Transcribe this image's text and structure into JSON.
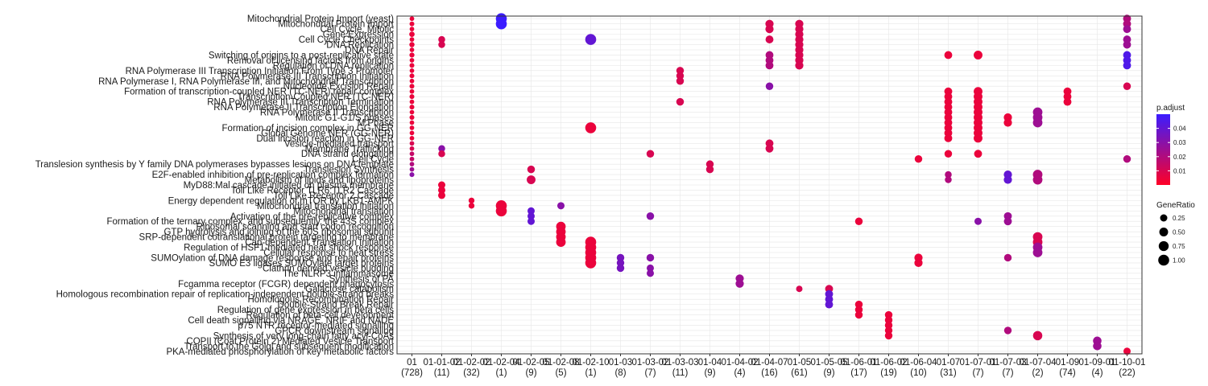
{
  "chart_data": {
    "type": "scatter",
    "title": "",
    "xlabel": "",
    "ylabel": "",
    "grid": true,
    "legend_placement": "right",
    "x_categories": [
      {
        "label": "01",
        "count": "(728)"
      },
      {
        "label": "01-01-02",
        "count": "(11)"
      },
      {
        "label": "01-02-02",
        "count": "(32)"
      },
      {
        "label": "01-02-04",
        "count": "(1)"
      },
      {
        "label": "01-02-05",
        "count": "(9)"
      },
      {
        "label": "01-02-08",
        "count": "(5)"
      },
      {
        "label": "01-02-10",
        "count": "(1)"
      },
      {
        "label": "01-03",
        "count": "(8)"
      },
      {
        "label": "01-03-02",
        "count": "(7)"
      },
      {
        "label": "01-03-03",
        "count": "(11)"
      },
      {
        "label": "01-04",
        "count": "(9)"
      },
      {
        "label": "01-04-02",
        "count": "(4)"
      },
      {
        "label": "01-04-07",
        "count": "(16)"
      },
      {
        "label": "01-05",
        "count": "(61)"
      },
      {
        "label": "01-05-05",
        "count": "(9)"
      },
      {
        "label": "01-06-01",
        "count": "(17)"
      },
      {
        "label": "01-06-02",
        "count": "(19)"
      },
      {
        "label": "01-06-04",
        "count": "(10)"
      },
      {
        "label": "01-07",
        "count": "(31)"
      },
      {
        "label": "01-07-01",
        "count": "(7)"
      },
      {
        "label": "01-07-03",
        "count": "(7)"
      },
      {
        "label": "01-07-04",
        "count": "(2)"
      },
      {
        "label": "01-09",
        "count": "(74)"
      },
      {
        "label": "01-09-01",
        "count": "(4)"
      },
      {
        "label": "01-10-01",
        "count": "(22)"
      }
    ],
    "y_categories": [
      "Mitochondrial Protein Import (yeast)",
      "Mitochondrial Protein Import",
      "Cell Cycle, Mitotic",
      "Gene Expression",
      "Cell Cycle Checkpoints",
      "DNA Replication",
      "DNA Repair",
      "Switching of origins to a post-replicative state",
      "Removal of licensing factors from origins",
      "Regulation of DNA replication",
      "RNA Polymerase III Transcription Initiation From Type 3 Promoter",
      "RNA Polymerase III Transcription Initiation",
      "RNA Polymerase I, RNA Polymerase III, and Mitochondrial Transcription",
      "Nucleotide Excision Repair",
      "Formation of transcription-coupled NER (TC-NER) repair complex",
      "Transcription-Coupled NER (TC-NER)",
      "RNA Polymerase III Transcription Termination",
      "RNA Polymerase II Transcription Elongation",
      "RNA Polymerase II Transcription",
      "Mitotic G1-G1/S phases",
      "M Phase",
      "Formation of incision complex in GG-NER",
      "Global Genome NER (GG-NER)",
      "Dual incision reaction in GG-NER",
      "Vesicle-mediated transport",
      "Membrane Trafficking",
      "DNA strand elongation",
      "Cell Cycle",
      "Translesion synthesis by Y family DNA polymerases bypasses lesions on DNA template",
      "Translesion Synthesis",
      "E2F-enabled inhibition of pre-replication complex formation",
      "Metabolism of lipids and lipoproteins",
      "MyD88:Mal cascade initiated on plasma membrane",
      "Toll Like Receptor TLR6:TLR2 Cascade",
      "Toll Like Receptor 2 Cascade",
      "Energy dependent regulation of mTOR by LKB1-AMPK",
      "Mitochondrial translation initiation",
      "Mitochondrial translation",
      "Activation of the pre-replicative complex",
      "Formation of the ternary complex, and subsequently, the 43S complex",
      "Ribosomal scanning and start codon recognition",
      "GTP hydrolysis and joining of the 60S ribosomal subunit",
      "SRP-dependent cotranslational protein targeting to membrane",
      "Cap-dependent Translation Initiation",
      "Regulation of HSF1-mediated heat shock response",
      "Cellular response to heat stress",
      "SUMOylation of DNA damage response and repair proteins",
      "SUMO E3 ligases SUMOylate target proteins",
      "Clathrin derived vesicle budding",
      "The NLRP3 inflammasome",
      "Synthesis of PA",
      "Fcgamma receptor (FCGR) dependent phagocytosis",
      "Galactose catabolism",
      "Homologous recombination repair of replication-independent double-strand breaks",
      "Homologous Recombination Repair",
      "Double-Strand Break Repair",
      "Regulation of gene expression in beta cells",
      "Regulation of beta-cell development",
      "Cell death signalling via NRAGE, NRIF and NADE",
      "p75 NTR receptor-mediated signalling",
      "GPCR downstream signaling",
      "Synthesis of very long-chain fatty acyl-CoAs",
      "COPII (Coat Protein 2) Mediated Vesicle Transport",
      "Transport to the Golgi and subsequent modification",
      "PKA-mediated phosphorylation of key metabolic factors"
    ],
    "legend": {
      "color": {
        "title": "p.adjust",
        "ticks": [
          0.01,
          0.02,
          0.03,
          0.04
        ],
        "min": 0.0,
        "max": 0.05,
        "low_color": "#ff0026",
        "high_color": "#3b1cff"
      },
      "size": {
        "title": "GeneRatio",
        "ticks": [
          0.25,
          0.5,
          0.75,
          1.0
        ],
        "tick_labels": [
          "0.25",
          "0.50",
          "0.75",
          "1.00"
        ]
      }
    },
    "points": [
      [
        0,
        0,
        0.02,
        0.005
      ],
      [
        0,
        2,
        0.02,
        0.005
      ],
      [
        0,
        4,
        0.02,
        0.005
      ],
      [
        0,
        6,
        0.02,
        0.005
      ],
      [
        0,
        8,
        0.02,
        0.005
      ],
      [
        0,
        10,
        0.02,
        0.005
      ],
      [
        0,
        12,
        0.02,
        0.005
      ],
      [
        0,
        14,
        0.02,
        0.005
      ],
      [
        0,
        16,
        0.02,
        0.005
      ],
      [
        0,
        18,
        0.02,
        0.005
      ],
      [
        0,
        20,
        0.02,
        0.005
      ],
      [
        0,
        22,
        0.02,
        0.005
      ],
      [
        0,
        24,
        0.02,
        0.01
      ],
      [
        0,
        26,
        0.02,
        0.015
      ],
      [
        0,
        28,
        0.02,
        0.02
      ],
      [
        0,
        30,
        0.03,
        0.03
      ],
      [
        0,
        1,
        0.03,
        0.005
      ],
      [
        0,
        3,
        0.06,
        0.005
      ],
      [
        0,
        5,
        0.05,
        0.005
      ],
      [
        0,
        7,
        0.04,
        0.005
      ],
      [
        0,
        9,
        0.03,
        0.005
      ],
      [
        0,
        11,
        0.03,
        0.005
      ],
      [
        0,
        13,
        0.03,
        0.005
      ],
      [
        0,
        15,
        0.03,
        0.005
      ],
      [
        0,
        17,
        0.03,
        0.005
      ],
      [
        0,
        19,
        0.03,
        0.005
      ],
      [
        0,
        21,
        0.02,
        0.005
      ],
      [
        0,
        23,
        0.02,
        0.005
      ],
      [
        0,
        25,
        0.02,
        0.01
      ],
      [
        0,
        27,
        0.02,
        0.015
      ],
      [
        0,
        29,
        0.02,
        0.025
      ],
      [
        1,
        4,
        0.2,
        0.01
      ],
      [
        1,
        5,
        0.2,
        0.01
      ],
      [
        1,
        25,
        0.2,
        0.03
      ],
      [
        1,
        26,
        0.2,
        0.01
      ],
      [
        1,
        32,
        0.25,
        0.005
      ],
      [
        1,
        33,
        0.25,
        0.005
      ],
      [
        1,
        34,
        0.25,
        0.005
      ],
      [
        2,
        35,
        0.1,
        0.005
      ],
      [
        2,
        36,
        0.1,
        0.005
      ],
      [
        3,
        0,
        1.0,
        0.05
      ],
      [
        3,
        1,
        1.0,
        0.05
      ],
      [
        3,
        36,
        1.0,
        0.005
      ],
      [
        3,
        37,
        1.0,
        0.005
      ],
      [
        4,
        29,
        0.3,
        0.01
      ],
      [
        4,
        31,
        0.5,
        0.01
      ],
      [
        4,
        37,
        0.25,
        0.04
      ],
      [
        4,
        38,
        0.25,
        0.04
      ],
      [
        4,
        39,
        0.25,
        0.04
      ],
      [
        5,
        36,
        0.25,
        0.03
      ],
      [
        5,
        40,
        0.65,
        0.005
      ],
      [
        5,
        41,
        0.65,
        0.005
      ],
      [
        5,
        42,
        0.65,
        0.005
      ],
      [
        5,
        43,
        0.65,
        0.005
      ],
      [
        6,
        4,
        1.0,
        0.04
      ],
      [
        6,
        21,
        1.0,
        0.005
      ],
      [
        6,
        43,
        1.0,
        0.005
      ],
      [
        6,
        44,
        1.0,
        0.005
      ],
      [
        6,
        45,
        1.0,
        0.005
      ],
      [
        6,
        46,
        1.0,
        0.005
      ],
      [
        6,
        47,
        1.0,
        0.005
      ],
      [
        7,
        46,
        0.3,
        0.035
      ],
      [
        7,
        47,
        0.3,
        0.035
      ],
      [
        7,
        48,
        0.3,
        0.035
      ],
      [
        8,
        26,
        0.3,
        0.01
      ],
      [
        8,
        38,
        0.3,
        0.03
      ],
      [
        8,
        46,
        0.3,
        0.03
      ],
      [
        8,
        48,
        0.25,
        0.03
      ],
      [
        8,
        49,
        0.25,
        0.03
      ],
      [
        9,
        10,
        0.3,
        0.01
      ],
      [
        9,
        11,
        0.3,
        0.01
      ],
      [
        9,
        12,
        0.3,
        0.01
      ],
      [
        9,
        16,
        0.3,
        0.01
      ],
      [
        10,
        28,
        0.3,
        0.01
      ],
      [
        10,
        29,
        0.3,
        0.01
      ],
      [
        11,
        50,
        0.4,
        0.025
      ],
      [
        11,
        51,
        0.4,
        0.025
      ],
      [
        12,
        1,
        0.4,
        0.01
      ],
      [
        12,
        2,
        0.4,
        0.01
      ],
      [
        12,
        4,
        0.35,
        0.01
      ],
      [
        12,
        7,
        0.35,
        0.02
      ],
      [
        12,
        8,
        0.35,
        0.02
      ],
      [
        12,
        9,
        0.35,
        0.02
      ],
      [
        12,
        13,
        0.3,
        0.03
      ],
      [
        12,
        24,
        0.35,
        0.01
      ],
      [
        12,
        25,
        0.35,
        0.01
      ],
      [
        13,
        1,
        0.4,
        0.01
      ],
      [
        13,
        2,
        0.4,
        0.01
      ],
      [
        13,
        3,
        0.4,
        0.01
      ],
      [
        13,
        4,
        0.4,
        0.01
      ],
      [
        13,
        5,
        0.4,
        0.01
      ],
      [
        13,
        6,
        0.4,
        0.01
      ],
      [
        13,
        7,
        0.4,
        0.01
      ],
      [
        13,
        8,
        0.4,
        0.01
      ],
      [
        13,
        9,
        0.4,
        0.01
      ],
      [
        13,
        52,
        0.15,
        0.01
      ],
      [
        14,
        52,
        0.35,
        0.01
      ],
      [
        14,
        53,
        0.35,
        0.04
      ],
      [
        14,
        54,
        0.35,
        0.04
      ],
      [
        14,
        55,
        0.35,
        0.04
      ],
      [
        15,
        39,
        0.3,
        0.005
      ],
      [
        15,
        55,
        0.3,
        0.005
      ],
      [
        15,
        56,
        0.3,
        0.005
      ],
      [
        15,
        57,
        0.3,
        0.005
      ],
      [
        16,
        57,
        0.3,
        0.005
      ],
      [
        16,
        58,
        0.3,
        0.005
      ],
      [
        16,
        59,
        0.3,
        0.005
      ],
      [
        16,
        60,
        0.3,
        0.005
      ],
      [
        16,
        61,
        0.3,
        0.005
      ],
      [
        17,
        27,
        0.3,
        0.005
      ],
      [
        17,
        46,
        0.4,
        0.005
      ],
      [
        17,
        47,
        0.4,
        0.005
      ],
      [
        18,
        7,
        0.35,
        0.005
      ],
      [
        18,
        14,
        0.35,
        0.005
      ],
      [
        18,
        15,
        0.35,
        0.005
      ],
      [
        18,
        16,
        0.35,
        0.005
      ],
      [
        18,
        17,
        0.35,
        0.005
      ],
      [
        18,
        18,
        0.35,
        0.005
      ],
      [
        18,
        19,
        0.35,
        0.005
      ],
      [
        18,
        20,
        0.35,
        0.005
      ],
      [
        18,
        21,
        0.35,
        0.005
      ],
      [
        18,
        22,
        0.35,
        0.005
      ],
      [
        18,
        23,
        0.35,
        0.005
      ],
      [
        18,
        26,
        0.3,
        0.005
      ],
      [
        18,
        30,
        0.2,
        0.02
      ],
      [
        18,
        31,
        0.2,
        0.02
      ],
      [
        19,
        7,
        0.5,
        0.005
      ],
      [
        19,
        14,
        0.5,
        0.005
      ],
      [
        19,
        15,
        0.5,
        0.005
      ],
      [
        19,
        16,
        0.5,
        0.005
      ],
      [
        19,
        17,
        0.5,
        0.005
      ],
      [
        19,
        18,
        0.5,
        0.005
      ],
      [
        19,
        19,
        0.5,
        0.005
      ],
      [
        19,
        20,
        0.5,
        0.005
      ],
      [
        19,
        21,
        0.5,
        0.005
      ],
      [
        19,
        22,
        0.5,
        0.005
      ],
      [
        19,
        23,
        0.5,
        0.005
      ],
      [
        19,
        26,
        0.35,
        0.005
      ],
      [
        19,
        39,
        0.25,
        0.03
      ],
      [
        20,
        19,
        0.4,
        0.005
      ],
      [
        20,
        20,
        0.4,
        0.005
      ],
      [
        20,
        30,
        0.4,
        0.04
      ],
      [
        20,
        31,
        0.4,
        0.04
      ],
      [
        20,
        38,
        0.35,
        0.025
      ],
      [
        20,
        39,
        0.35,
        0.025
      ],
      [
        20,
        46,
        0.3,
        0.02
      ],
      [
        20,
        60,
        0.3,
        0.02
      ],
      [
        21,
        18,
        0.65,
        0.025
      ],
      [
        21,
        19,
        0.65,
        0.025
      ],
      [
        21,
        20,
        0.65,
        0.025
      ],
      [
        21,
        30,
        0.65,
        0.02
      ],
      [
        21,
        31,
        0.65,
        0.02
      ],
      [
        21,
        42,
        0.65,
        0.01
      ],
      [
        21,
        43,
        0.65,
        0.01
      ],
      [
        21,
        44,
        0.65,
        0.025
      ],
      [
        21,
        45,
        0.65,
        0.025
      ],
      [
        21,
        61,
        0.6,
        0.01
      ],
      [
        22,
        14,
        0.35,
        0.005
      ],
      [
        22,
        15,
        0.35,
        0.005
      ],
      [
        22,
        16,
        0.35,
        0.005
      ],
      [
        23,
        62,
        0.45,
        0.025
      ],
      [
        23,
        63,
        0.45,
        0.025
      ],
      [
        24,
        0,
        0.35,
        0.02
      ],
      [
        24,
        1,
        0.35,
        0.02
      ],
      [
        24,
        2,
        0.35,
        0.025
      ],
      [
        24,
        4,
        0.35,
        0.025
      ],
      [
        24,
        5,
        0.35,
        0.025
      ],
      [
        24,
        7,
        0.35,
        0.045
      ],
      [
        24,
        8,
        0.35,
        0.045
      ],
      [
        24,
        9,
        0.35,
        0.045
      ],
      [
        24,
        13,
        0.3,
        0.01
      ],
      [
        24,
        27,
        0.3,
        0.02
      ],
      [
        24,
        64,
        0.25,
        0.005
      ]
    ]
  }
}
